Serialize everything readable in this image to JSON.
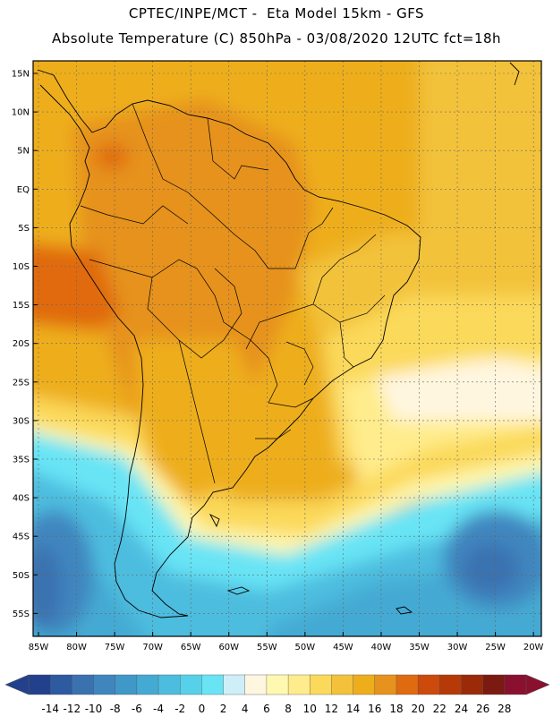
{
  "header": {
    "line1": "CPTEC/INPE/MCT -  Eta Model 15km - GFS",
    "line2": "Absolute Temperature (C) 850hPa - 03/08/2020 12UTC fct=18h"
  },
  "map": {
    "lat_labels": [
      "15N",
      "10N",
      "5N",
      "EQ",
      "5S",
      "10S",
      "15S",
      "20S",
      "25S",
      "30S",
      "35S",
      "40S",
      "45S",
      "50S",
      "55S"
    ],
    "lon_labels": [
      "85W",
      "80W",
      "75W",
      "70W",
      "65W",
      "60W",
      "55W",
      "50W",
      "45W",
      "40W",
      "35W",
      "30W",
      "25W",
      "20W"
    ]
  },
  "colorbar": {
    "labels": [
      "-14",
      "-12",
      "-10",
      "-8",
      "-6",
      "-4",
      "-2",
      "0",
      "2",
      "4",
      "6",
      "8",
      "10",
      "12",
      "14",
      "16",
      "18",
      "20",
      "22",
      "24",
      "26",
      "28"
    ],
    "colors": [
      "#23408c",
      "#2d5aa0",
      "#3a72b0",
      "#3f86bf",
      "#4098c8",
      "#45aad3",
      "#4dbddf",
      "#57d0ea",
      "#68e4f5",
      "#cfeff8",
      "#fff6e0",
      "#fff8b0",
      "#ffec8c",
      "#fbd95a",
      "#f3c23a",
      "#eeae1c",
      "#e6921c",
      "#e06a10",
      "#cc4a0c",
      "#b53a08",
      "#9a2a08",
      "#7a1a10",
      "#8a1030"
    ]
  },
  "colors": {
    "frame": "#000000",
    "grid": "#666666",
    "coast": "#000000"
  }
}
